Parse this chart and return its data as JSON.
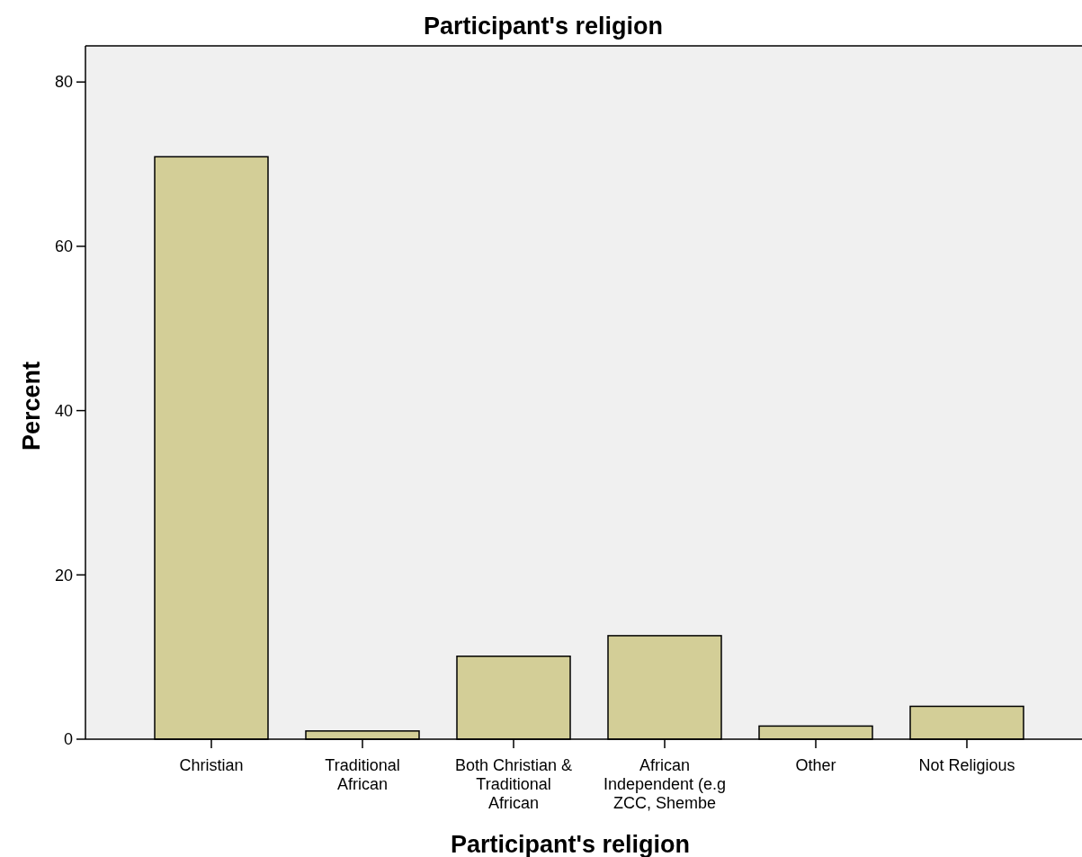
{
  "chart_data": {
    "type": "bar",
    "title": "Participant's religion",
    "xlabel": "Participant's religion",
    "ylabel": "Percent",
    "categories": [
      "Christian",
      "Traditional African",
      "Both Christian & Traditional African",
      "African Independent (e.g ZCC, Shembe",
      "Other",
      "Not Religious"
    ],
    "values": [
      70.9,
      1.0,
      10.1,
      12.6,
      1.6,
      4.0
    ],
    "color": "#d3ce97",
    "ylim": [
      0,
      84.4
    ],
    "yticks": [
      0,
      20,
      40,
      60,
      80
    ],
    "grid": false
  }
}
